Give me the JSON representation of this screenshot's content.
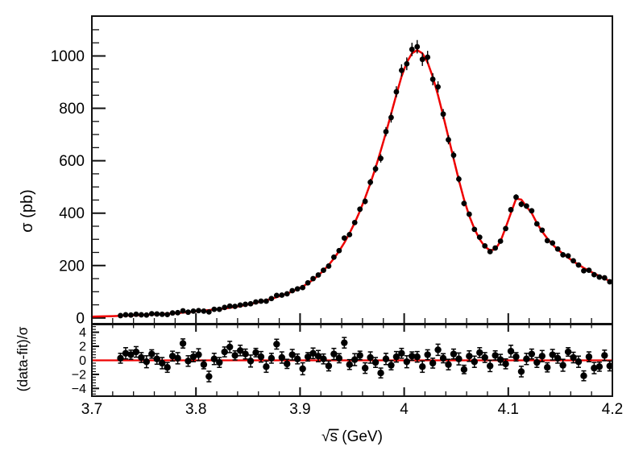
{
  "meta": {
    "background": "#ffffff"
  },
  "chart_data": {
    "type": "scatter+line",
    "layout": "two stacked panels sharing x axis",
    "title": "",
    "xlabel": "√s (GeV)",
    "xlim": [
      3.7,
      4.2
    ],
    "xticks": [
      3.7,
      3.8,
      3.9,
      4.0,
      4.1,
      4.2
    ],
    "xtick_labels": [
      "3.7",
      "3.8",
      "3.9",
      "4",
      "4.1",
      "4.2"
    ],
    "x_minor_step": 0.02,
    "colors": {
      "data": "#000000",
      "fit": "#ee0000",
      "frame": "#111111"
    },
    "legend": "none",
    "grid": "off",
    "top_panel": {
      "ylabel": "σ (pb)",
      "ylim": [
        -22,
        1152
      ],
      "yticks": [
        0,
        200,
        400,
        600,
        800,
        1000
      ],
      "ytick_labels": [
        "0",
        "200",
        "400",
        "600",
        "800",
        "1000"
      ],
      "y_minor_step": 50,
      "series": [
        {
          "name": "data",
          "type": "scatter",
          "marker": "filled-circle",
          "color": "#000000"
        },
        {
          "name": "fit",
          "type": "line",
          "color": "#ee0000"
        }
      ],
      "x": [
        3.7275,
        3.7325,
        3.7375,
        3.7425,
        3.7475,
        3.7525,
        3.7575,
        3.7625,
        3.7675,
        3.7725,
        3.7775,
        3.7825,
        3.7875,
        3.7925,
        3.7975,
        3.8025,
        3.8075,
        3.8125,
        3.8175,
        3.8225,
        3.8275,
        3.8325,
        3.8375,
        3.8425,
        3.8475,
        3.8525,
        3.8575,
        3.8625,
        3.8675,
        3.8725,
        3.8775,
        3.8825,
        3.8875,
        3.8925,
        3.8975,
        3.9025,
        3.9075,
        3.9125,
        3.9175,
        3.9225,
        3.9275,
        3.9325,
        3.9375,
        3.9425,
        3.9475,
        3.9525,
        3.9575,
        3.9625,
        3.9675,
        3.9725,
        3.9775,
        3.9825,
        3.9875,
        3.9925,
        3.9975,
        4.0025,
        4.0075,
        4.0125,
        4.0175,
        4.0225,
        4.0275,
        4.0325,
        4.0375,
        4.0425,
        4.0475,
        4.0525,
        4.0575,
        4.0625,
        4.0675,
        4.0725,
        4.0775,
        4.0825,
        4.0875,
        4.0925,
        4.0975,
        4.1025,
        4.1075,
        4.1125,
        4.1175,
        4.1225,
        4.1275,
        4.1325,
        4.1375,
        4.1425,
        4.1475,
        4.1525,
        4.1575,
        4.1625,
        4.1675,
        4.1725,
        4.1775,
        4.1825,
        4.1875,
        4.1925,
        4.1975
      ],
      "data_sigma_pb": [
        9,
        12,
        11,
        14,
        12,
        11,
        16,
        15,
        14,
        13,
        19,
        20,
        27,
        22,
        26,
        28,
        26,
        23,
        33,
        33,
        40,
        45,
        44,
        49,
        52,
        54,
        61,
        64,
        64,
        74,
        86,
        87,
        92,
        104,
        111,
        116,
        134,
        150,
        164,
        182,
        198,
        232,
        257,
        305,
        318,
        364,
        415,
        445,
        518,
        569,
        609,
        711,
        765,
        863,
        945,
        970,
        1025,
        1035,
        987,
        995,
        911,
        882,
        778,
        680,
        621,
        530,
        437,
        396,
        338,
        308,
        275,
        253,
        267,
        293,
        341,
        413,
        461,
        434,
        427,
        409,
        359,
        335,
        295,
        286,
        263,
        241,
        237,
        218,
        202,
        180,
        182,
        165,
        156,
        153,
        138
      ],
      "data_err_pb": [
        3,
        3,
        3,
        3,
        3,
        3,
        3,
        3,
        3,
        3,
        3,
        3,
        3,
        3,
        3,
        3,
        3,
        3,
        3,
        3,
        3,
        3,
        3,
        3,
        3,
        3,
        3,
        3,
        3,
        3,
        3,
        3,
        3,
        3,
        3,
        3,
        3.3,
        3.7,
        4.1,
        4.5,
        5.1,
        5.7,
        6.4,
        7.2,
        8.1,
        9.1,
        10.2,
        11.5,
        12.8,
        14.3,
        16,
        17.7,
        19.5,
        21.3,
        23.1,
        24.4,
        25.3,
        25.6,
        25.3,
        24.4,
        23,
        21.3,
        19.3,
        17.3,
        15.2,
        13.2,
        11.3,
        9.8,
        8.5,
        7.5,
        6.8,
        6.5,
        6.6,
        7.3,
        8.6,
        10,
        11.4,
        11.3,
        10.6,
        10,
        9.1,
        8.3,
        7.6,
        7,
        6.5,
        6.1,
        5.8,
        5.4,
        5.1,
        4.8,
        4.5,
        4.3,
        4,
        3.8,
        3.5
      ],
      "fit_sigma_pb": [
        8,
        9,
        9,
        10,
        11,
        12,
        13,
        14,
        15,
        16,
        17,
        19,
        20,
        22,
        24,
        26,
        28,
        30,
        32,
        34,
        36,
        39,
        42,
        45,
        49,
        54,
        58,
        62,
        67,
        73,
        79,
        86,
        93,
        101,
        110,
        120,
        132,
        146,
        162,
        181,
        202,
        227,
        255,
        287,
        323,
        363,
        408,
        458,
        513,
        573,
        638,
        707,
        779,
        852,
        922,
        975,
        1010,
        1022,
        1010,
        975,
        920,
        850,
        772,
        690,
        607,
        527,
        452,
        390,
        340,
        300,
        272,
        258,
        262,
        292,
        345,
        400,
        455,
        452,
        425,
        400,
        362,
        330,
        303,
        280,
        261,
        245,
        230,
        216,
        203,
        191,
        180,
        170,
        160,
        150,
        141
      ],
      "fit_head": [
        [
          3.7,
          5
        ],
        [
          3.71,
          6
        ],
        [
          3.72,
          7
        ]
      ],
      "peak_1": {
        "sqrt_s": 4.012,
        "sigma_pb": 1022
      },
      "peak_2": {
        "sqrt_s": 4.108,
        "sigma_pb": 460
      },
      "valley": {
        "sqrt_s": 4.082,
        "sigma_pb": 257
      }
    },
    "bottom_panel": {
      "ylabel": "(data-fit)/σ",
      "ylim": [
        -5.1,
        5.1
      ],
      "yticks": [
        4,
        2,
        0,
        -2,
        -4
      ],
      "ytick_labels": [
        "4",
        "2",
        "0",
        "−2",
        "−4"
      ],
      "y_minor_step": 0.4,
      "zero_line_value": 0,
      "zero_line_color": "#ee0000",
      "residuals": [
        0.3,
        1.0,
        0.8,
        1.2,
        0.4,
        -0.2,
        0.9,
        0.2,
        -0.4,
        -1.0,
        0.6,
        0.3,
        2.4,
        -0.1,
        0.5,
        0.8,
        -0.6,
        -2.3,
        0.2,
        -0.3,
        1.2,
        1.9,
        0.7,
        1.4,
        0.9,
        -0.1,
        1.1,
        0.5,
        -0.9,
        0.3,
        2.3,
        0.4,
        -0.5,
        0.8,
        0.2,
        -1.2,
        0.5,
        1.0,
        0.6,
        0.2,
        -0.8,
        0.9,
        0.3,
        2.5,
        -0.6,
        0.1,
        0.7,
        -1.1,
        0.4,
        -0.3,
        -1.8,
        0.2,
        -0.7,
        0.5,
        1.0,
        -0.2,
        0.6,
        0.5,
        -0.9,
        0.8,
        -0.4,
        1.5,
        0.3,
        -0.6,
        0.9,
        0.2,
        -1.3,
        0.6,
        -0.2,
        1.1,
        0.4,
        -0.8,
        0.7,
        0.1,
        -0.5,
        1.3,
        0.5,
        -1.6,
        0.2,
        0.9,
        -0.3,
        0.6,
        -1.0,
        0.8,
        0.3,
        -0.7,
        1.2,
        0.4,
        -0.2,
        -2.2,
        0.5,
        -1.1,
        -0.9,
        0.7,
        -0.8
      ],
      "residual_err": [
        0.7,
        0.8,
        0.65,
        0.75,
        0.7,
        0.85,
        0.6,
        0.75,
        0.8,
        0.7,
        0.7,
        0.8,
        0.65,
        0.75,
        0.7,
        0.85,
        0.6,
        0.75,
        0.8,
        0.7,
        0.7,
        0.8,
        0.65,
        0.75,
        0.7,
        0.85,
        0.6,
        0.75,
        0.8,
        0.7,
        0.7,
        0.8,
        0.65,
        0.75,
        0.7,
        0.85,
        0.6,
        0.75,
        0.8,
        0.7,
        0.7,
        0.8,
        0.65,
        0.75,
        0.7,
        0.85,
        0.6,
        0.75,
        0.8,
        0.7,
        0.7,
        0.8,
        0.65,
        0.75,
        0.7,
        0.85,
        0.6,
        0.75,
        0.8,
        0.7,
        0.7,
        0.8,
        0.65,
        0.75,
        0.7,
        0.85,
        0.6,
        0.75,
        0.8,
        0.7,
        0.7,
        0.8,
        0.65,
        0.75,
        0.7,
        0.85,
        0.6,
        0.75,
        0.8,
        0.7,
        0.7,
        0.8,
        0.65,
        0.75,
        0.7,
        0.85,
        0.6,
        0.75,
        0.8,
        0.7,
        0.7,
        0.8,
        0.65,
        0.75,
        0.7
      ]
    }
  }
}
